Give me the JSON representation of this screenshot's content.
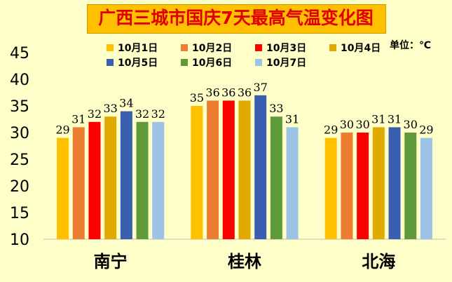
{
  "chart_data": {
    "type": "bar",
    "title": "广西三城市国庆7天最高气温变化图",
    "unit": "单位：℃",
    "categories": [
      "南宁",
      "桂林",
      "北海"
    ],
    "series": [
      {
        "name": "10月1日",
        "color": "#ffc000",
        "values": [
          29,
          35,
          29
        ]
      },
      {
        "name": "10月2日",
        "color": "#ed7d31",
        "values": [
          31,
          36,
          30
        ]
      },
      {
        "name": "10月3日",
        "color": "#ff0000",
        "values": [
          32,
          36,
          30
        ]
      },
      {
        "name": "10月4日",
        "color": "#e0aa00",
        "values": [
          33,
          36,
          31
        ]
      },
      {
        "name": "10月5日",
        "color": "#3a5fb0",
        "values": [
          34,
          37,
          31
        ]
      },
      {
        "name": "10月6日",
        "color": "#5f9a3a",
        "values": [
          32,
          33,
          30
        ]
      },
      {
        "name": "10月7日",
        "color": "#9dc3e6",
        "values": [
          32,
          31,
          29
        ]
      }
    ],
    "ylim": [
      10,
      45
    ],
    "yticks": [
      10,
      15,
      20,
      25,
      30,
      35,
      40,
      45
    ],
    "grid": false,
    "legend_position": "top"
  }
}
